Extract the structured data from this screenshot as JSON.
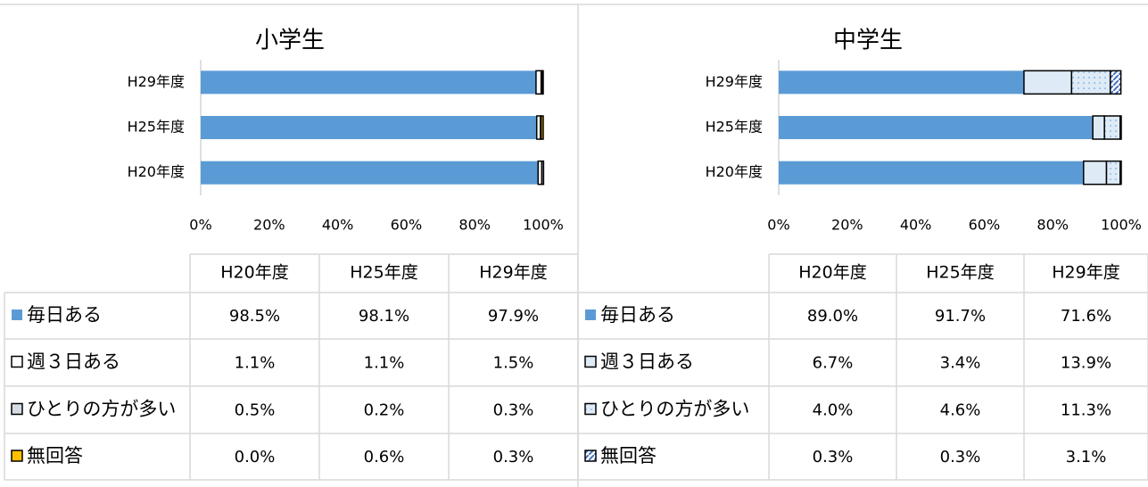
{
  "chart_data": [
    {
      "type": "stacked-bar-horizontal",
      "title": "小学生",
      "categories": [
        "H29年度",
        "H25年度",
        "H20年度"
      ],
      "xlim": [
        0,
        100
      ],
      "xticks": [
        {
          "value": 0,
          "label": "0%"
        },
        {
          "value": 20,
          "label": "20%"
        },
        {
          "value": 40,
          "label": "40%"
        },
        {
          "value": 60,
          "label": "60%"
        },
        {
          "value": 80,
          "label": "80%"
        },
        {
          "value": 100,
          "label": "100%"
        }
      ],
      "series": [
        {
          "name": "毎日ある",
          "color": "#5b9bd5",
          "values": [
            97.9,
            98.1,
            98.5
          ],
          "value_labels": [
            "97.9%",
            "98.1%",
            "98.5%"
          ]
        },
        {
          "name": "週３日ある",
          "color": "#ffffff",
          "values": [
            1.5,
            1.1,
            1.1
          ],
          "value_labels": [
            "1.5%",
            "1.1%",
            "1.1%"
          ]
        },
        {
          "name": "ひとりの方が多い",
          "color": "#d6dce4",
          "values": [
            0.3,
            0.2,
            0.5
          ],
          "value_labels": [
            "0.3%",
            "0.2%",
            "0.5%"
          ]
        },
        {
          "name": "無回答",
          "color": "#ffc000",
          "values": [
            0.3,
            0.6,
            0.0
          ],
          "value_labels": [
            "0.3%",
            "0.6%",
            "0.0%"
          ]
        }
      ]
    },
    {
      "type": "stacked-bar-horizontal",
      "title": "中学生",
      "categories": [
        "H29年度",
        "H25年度",
        "H20年度"
      ],
      "xlim": [
        0,
        100
      ],
      "xticks": [
        {
          "value": 0,
          "label": "0%"
        },
        {
          "value": 20,
          "label": "20%"
        },
        {
          "value": 40,
          "label": "40%"
        },
        {
          "value": 60,
          "label": "60%"
        },
        {
          "value": 80,
          "label": "80%"
        },
        {
          "value": 100,
          "label": "100%"
        }
      ],
      "series": [
        {
          "name": "毎日ある",
          "color": "#5b9bd5",
          "values": [
            71.6,
            91.7,
            89.0
          ],
          "value_labels": [
            "71.6%",
            "91.7%",
            "89.0%"
          ]
        },
        {
          "name": "週３日ある",
          "color": "#deebf7",
          "values": [
            13.9,
            3.4,
            6.7
          ],
          "value_labels": [
            "13.9%",
            "3.4%",
            "6.7%"
          ]
        },
        {
          "name": "ひとりの方が多い",
          "color": "#deebf7",
          "pattern": "dots",
          "values": [
            11.3,
            4.6,
            4.0
          ],
          "value_labels": [
            "11.3%",
            "4.6%",
            "4.0%"
          ]
        },
        {
          "name": "無回答",
          "color": "#ffffff",
          "pattern": "hatch",
          "values": [
            3.1,
            0.3,
            0.3
          ],
          "value_labels": [
            "3.1%",
            "0.3%",
            "0.3%"
          ]
        }
      ]
    }
  ]
}
